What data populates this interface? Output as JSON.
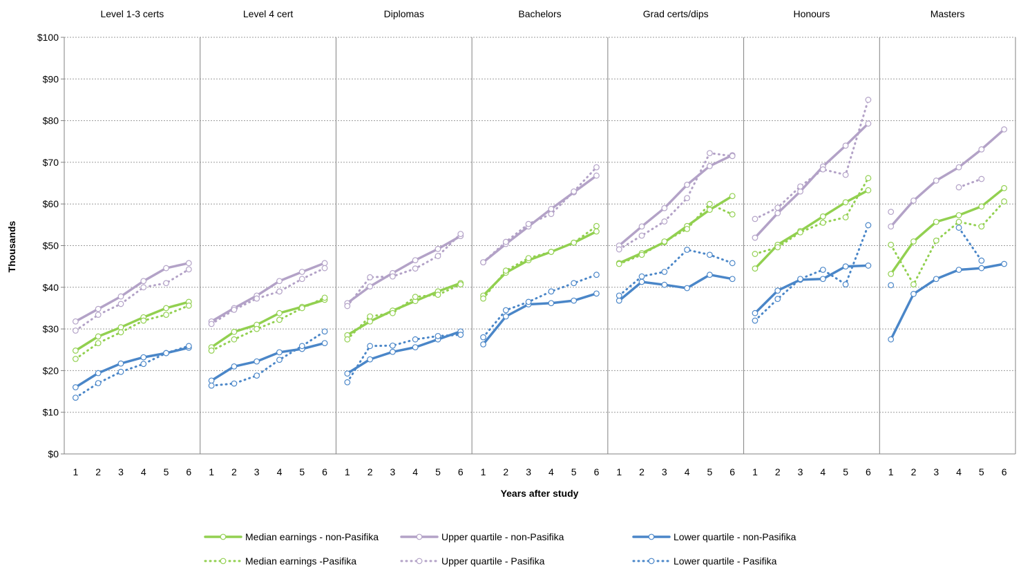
{
  "chart_data": {
    "type": "line",
    "title": "",
    "xlabel": "Years after study",
    "ylabel": "Thousands",
    "ylim": [
      0,
      100
    ],
    "y_ticks": [
      "$0",
      "$10",
      "$20",
      "$30",
      "$40",
      "$50",
      "$60",
      "$70",
      "$80",
      "$90",
      "$100"
    ],
    "x": [
      "1",
      "2",
      "3",
      "4",
      "5",
      "6"
    ],
    "grid": "horizontal dotted",
    "legend_position": "bottom",
    "legend": [
      "Median earnings  - non-Pasifika",
      "Upper quartile - non-Pasifika",
      "Lower quartile - non-Pasifika",
      "Median earnings -Pasifika",
      "Upper quartile - Pasifika",
      "Lower quartile - Pasifika"
    ],
    "colors": {
      "median": "#92D050",
      "upper": "#B3A2C7",
      "lower": "#4A86C8"
    },
    "panels": [
      {
        "name": "Level 1-3 certs",
        "median_non": [
          24.8,
          28.2,
          30.4,
          32.8,
          35.0,
          36.5
        ],
        "upper_non": [
          31.8,
          34.8,
          37.8,
          41.5,
          44.6,
          45.8
        ],
        "lower_non": [
          16.0,
          19.4,
          21.7,
          23.2,
          24.2,
          25.5
        ],
        "median_pas": [
          22.8,
          26.6,
          29.2,
          32.0,
          33.4,
          35.6
        ],
        "upper_pas": [
          29.6,
          33.4,
          36.0,
          40.0,
          41.0,
          44.3
        ],
        "lower_pas": [
          13.5,
          17.0,
          19.7,
          21.6,
          24.2,
          25.9
        ]
      },
      {
        "name": "Level 4 cert",
        "median_non": [
          25.6,
          29.3,
          31.0,
          33.8,
          35.3,
          37.0
        ],
        "upper_non": [
          31.8,
          35.0,
          38.0,
          41.5,
          43.7,
          45.8
        ],
        "lower_non": [
          17.6,
          21.0,
          22.2,
          24.4,
          25.2,
          26.6
        ],
        "median_pas": [
          24.8,
          27.5,
          30.0,
          32.2,
          35.0,
          37.5
        ],
        "upper_pas": [
          31.2,
          34.6,
          37.3,
          39.0,
          42.0,
          44.6
        ],
        "lower_pas": [
          16.4,
          16.9,
          18.8,
          22.6,
          25.9,
          29.4
        ]
      },
      {
        "name": "Diplomas",
        "median_non": [
          28.5,
          31.8,
          34.4,
          36.7,
          39.0,
          41.0
        ],
        "upper_non": [
          36.2,
          40.2,
          43.4,
          46.5,
          49.2,
          52.3
        ],
        "lower_non": [
          19.3,
          22.7,
          24.5,
          25.6,
          27.5,
          29.4
        ],
        "median_pas": [
          27.5,
          33.0,
          33.8,
          37.7,
          38.2,
          40.7
        ],
        "upper_pas": [
          35.5,
          42.4,
          42.6,
          44.5,
          47.5,
          52.8
        ],
        "lower_pas": [
          17.2,
          25.9,
          26.0,
          27.5,
          28.3,
          28.6
        ]
      },
      {
        "name": "Bachelors",
        "median_non": [
          38.0,
          43.5,
          46.5,
          48.5,
          50.7,
          53.4
        ],
        "upper_non": [
          46.0,
          50.4,
          54.6,
          58.8,
          62.8,
          66.8
        ],
        "lower_non": [
          26.3,
          33.0,
          35.9,
          36.2,
          36.8,
          38.5
        ],
        "median_pas": [
          37.3,
          44.0,
          47.0,
          48.5,
          50.7,
          54.7
        ],
        "upper_pas": [
          46.0,
          50.9,
          55.2,
          57.6,
          63.0,
          68.8
        ],
        "lower_pas": [
          28.0,
          34.5,
          36.5,
          39.0,
          41.0,
          43.0
        ]
      },
      {
        "name": "Grad certs/dips",
        "median_non": [
          45.8,
          48.2,
          50.8,
          54.7,
          58.6,
          61.9
        ],
        "upper_non": [
          50.0,
          54.6,
          59.0,
          64.6,
          69.1,
          71.7
        ],
        "lower_non": [
          36.8,
          41.3,
          40.6,
          39.8,
          43.0,
          42.0
        ],
        "median_pas": [
          45.6,
          47.8,
          51.0,
          54.0,
          60.0,
          57.5
        ],
        "upper_pas": [
          49.1,
          52.4,
          55.8,
          61.4,
          72.2,
          71.5
        ],
        "lower_pas": [
          38.0,
          42.6,
          43.7,
          49.0,
          47.8,
          45.8
        ]
      },
      {
        "name": "Honours",
        "median_non": [
          44.5,
          50.2,
          53.5,
          57.0,
          60.4,
          63.3
        ],
        "upper_non": [
          51.9,
          57.8,
          63.0,
          69.0,
          74.0,
          79.3
        ],
        "lower_non": [
          33.8,
          39.2,
          41.8,
          42.0,
          45.0,
          45.2
        ],
        "median_pas": [
          48.0,
          49.6,
          53.2,
          55.5,
          56.8,
          66.2
        ],
        "upper_pas": [
          56.4,
          59.1,
          64.2,
          68.3,
          67.0,
          85.0
        ],
        "lower_pas": [
          32.0,
          37.2,
          42.0,
          44.2,
          40.7,
          54.9
        ]
      },
      {
        "name": "Masters",
        "median_non": [
          43.2,
          51.0,
          55.7,
          57.3,
          59.4,
          63.8
        ],
        "upper_non": [
          54.6,
          60.8,
          65.6,
          68.8,
          73.1,
          77.9
        ],
        "lower_non": [
          27.5,
          38.4,
          42.0,
          44.2,
          44.6,
          45.6
        ],
        "median_pas": [
          50.2,
          40.7,
          51.2,
          55.7,
          54.6,
          60.6
        ],
        "upper_pas": [
          58.1,
          null,
          null,
          64.0,
          66.0,
          null
        ],
        "lower_pas": [
          40.5,
          null,
          null,
          54.3,
          46.4,
          null
        ]
      }
    ]
  }
}
